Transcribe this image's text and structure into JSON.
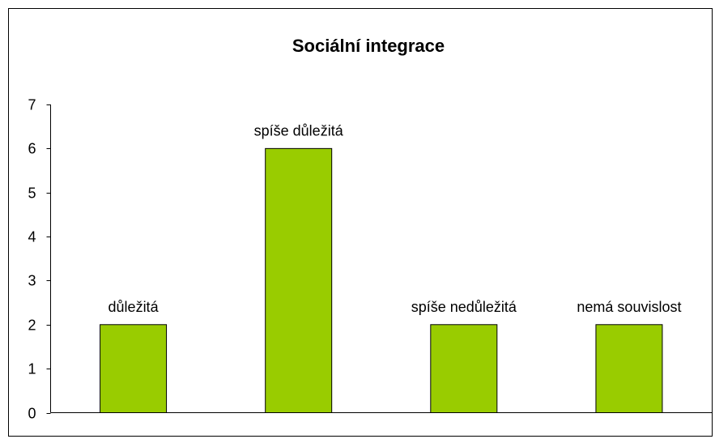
{
  "chart_data": {
    "type": "bar",
    "title": "Sociální integrace",
    "categories": [
      "důležitá",
      "spíše důležitá",
      "spíše nedůležitá",
      "nemá souvislost"
    ],
    "values": [
      2,
      6,
      2,
      2
    ],
    "color": "#99cc00",
    "ylim": [
      0,
      7
    ],
    "yticks": [
      0,
      1,
      2,
      3,
      4,
      5,
      6,
      7
    ],
    "grid": false
  }
}
